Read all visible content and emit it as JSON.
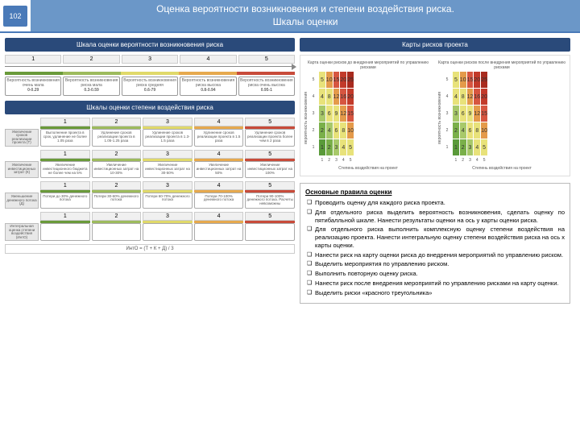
{
  "page_number": "102",
  "title_line1": "Оценка вероятности возникновения и степени воздействия риска.",
  "title_line2": "Шкалы оценки",
  "prob_scale": {
    "header": "Шкала оценки вероятности возникновения риска",
    "nums": [
      "1",
      "2",
      "3",
      "4",
      "5"
    ],
    "bar_colors": [
      "#6a9a3a",
      "#9dbb5d",
      "#e0d96a",
      "#e6a94e",
      "#c84b3a"
    ],
    "boxes": [
      {
        "t": "Вероятность возникновения очень мала",
        "v": "0-0.29"
      },
      {
        "t": "Вероятность возникновения риска мала",
        "v": "0.3-0.59"
      },
      {
        "t": "Вероятность возникновения риска средняя",
        "v": "0.6-79"
      },
      {
        "t": "Вероятность возникновения риска высока",
        "v": "0.8-0.94"
      },
      {
        "t": "Вероятность возникновения риска очень высока",
        "v": "0.95-1"
      }
    ]
  },
  "impact_scale": {
    "header": "Шкалы оценки степени воздействия риска",
    "bar_colors": [
      "#6a9a3a",
      "#9dbb5d",
      "#e0d96a",
      "#e6a94e",
      "#c84b3a"
    ],
    "groups": [
      {
        "label": "Увеличение сроков реализации проекта (Т)",
        "boxes": [
          "Выполнение проекта в срок, удлинение не более 1.05 раза",
          "Удлинение сроков реализации проекта в 1.05-1.25 раза",
          "Удлинение сроков реализации проекта в 1.3-1.5 раза",
          "Удлинение сроков реализации проекта в 1.5 раза",
          "Удлинение сроков реализации проекта более чем в 2 раза"
        ]
      },
      {
        "label": "Увеличение инвестиционных затрат (К)",
        "boxes": [
          "Увеличение инвестиционного бюджета не более чем на 5%",
          "Увеличение инвестиционных затрат на 10-30%",
          "Увеличение инвестиционных затрат на 30-50%",
          "Увеличение инвестиционных затрат на 50%",
          "Увеличение инвестиционных затрат на 100%"
        ]
      },
      {
        "label": "Уменьшение денежного потока (Д)",
        "boxes": [
          "Потери до 30% денежного потока",
          "Потери 30-60% денежного потока",
          "Потери 60-70% денежного потока",
          "Потери 70-100% денежного потока",
          "Потери 90-100% денежного потока. Расчеты невозможны"
        ]
      },
      {
        "label": "Интегральная оценка степени воздействия (ИнтО)",
        "boxes": [
          "",
          "",
          "",
          "",
          ""
        ]
      }
    ],
    "formula": "ИнтО = (Т + К + Д) / 3"
  },
  "maps": {
    "header": "Карты рисков проекта",
    "left_title": "Карта оценки рисков до внедрения мероприятий по управлению рисками",
    "right_title": "Карта оценки рисков после внедрения мероприятий по управлению рисками",
    "y_axis": "вероятность возникновения",
    "x_axis": "Степень воздействия на проект",
    "ylabs": [
      "5",
      "4",
      "3",
      "2",
      "1"
    ],
    "xlabs": [
      "1",
      "2",
      "3",
      "4",
      "5"
    ],
    "left_cells": [
      [
        {
          "v": 5,
          "c": "#e8e27a"
        },
        {
          "v": 10,
          "c": "#e49a4a"
        },
        {
          "v": 15,
          "c": "#d65540"
        },
        {
          "v": 20,
          "c": "#c23a2a"
        },
        {
          "v": 25,
          "c": "#a82a1e"
        }
      ],
      [
        {
          "v": 4,
          "c": "#e8e27a"
        },
        {
          "v": 8,
          "c": "#e8e27a"
        },
        {
          "v": 12,
          "c": "#e49a4a"
        },
        {
          "v": 16,
          "c": "#d65540"
        },
        {
          "v": 20,
          "c": "#c23a2a"
        }
      ],
      [
        {
          "v": 3,
          "c": "#a8c96a"
        },
        {
          "v": 6,
          "c": "#e8e27a"
        },
        {
          "v": 9,
          "c": "#e8e27a"
        },
        {
          "v": 12,
          "c": "#e49a4a"
        },
        {
          "v": 15,
          "c": "#d65540"
        }
      ],
      [
        {
          "v": 2,
          "c": "#7ab04a"
        },
        {
          "v": 4,
          "c": "#a8c96a"
        },
        {
          "v": 6,
          "c": "#e8e27a"
        },
        {
          "v": 8,
          "c": "#e8e27a"
        },
        {
          "v": 10,
          "c": "#e49a4a"
        }
      ],
      [
        {
          "v": 1,
          "c": "#5a9a3a"
        },
        {
          "v": 2,
          "c": "#7ab04a"
        },
        {
          "v": 3,
          "c": "#a8c96a"
        },
        {
          "v": 4,
          "c": "#e8e27a"
        },
        {
          "v": 5,
          "c": "#e8e27a"
        }
      ]
    ],
    "right_cells": [
      [
        {
          "v": 5,
          "c": "#e8e27a"
        },
        {
          "v": 10,
          "c": "#e49a4a"
        },
        {
          "v": 15,
          "c": "#d65540"
        },
        {
          "v": 20,
          "c": "#c23a2a"
        },
        {
          "v": 25,
          "c": "#a82a1e"
        }
      ],
      [
        {
          "v": 4,
          "c": "#e8e27a"
        },
        {
          "v": 8,
          "c": "#e8e27a"
        },
        {
          "v": 12,
          "c": "#e49a4a"
        },
        {
          "v": 16,
          "c": "#d65540"
        },
        {
          "v": 20,
          "c": "#c23a2a"
        }
      ],
      [
        {
          "v": 3,
          "c": "#a8c96a"
        },
        {
          "v": 6,
          "c": "#e8e27a"
        },
        {
          "v": 9,
          "c": "#e8e27a"
        },
        {
          "v": 12,
          "c": "#e49a4a"
        },
        {
          "v": 15,
          "c": "#d65540"
        }
      ],
      [
        {
          "v": 2,
          "c": "#7ab04a"
        },
        {
          "v": 4,
          "c": "#a8c96a"
        },
        {
          "v": 6,
          "c": "#e8e27a"
        },
        {
          "v": 8,
          "c": "#e8e27a"
        },
        {
          "v": 10,
          "c": "#e49a4a"
        }
      ],
      [
        {
          "v": 1,
          "c": "#5a9a3a"
        },
        {
          "v": 2,
          "c": "#7ab04a"
        },
        {
          "v": 3,
          "c": "#a8c96a"
        },
        {
          "v": 4,
          "c": "#e8e27a"
        },
        {
          "v": 5,
          "c": "#e8e27a"
        }
      ]
    ]
  },
  "rules": {
    "title": "Основные правила оценки",
    "items": [
      "Проводить оценку для каждого риска проекта.",
      "Для отдельного риска выделить вероятность возникновения, сделать оценку по пятибалльной шкале. Нанести результаты оценки на ось у карты оценки риска.",
      "Для отдельного риска выполнить комплексную оценку степени воздействия на реализацию проекта. Нанести интегральную оценку степени воздействия риска на ось х карты оценки.",
      "Нанести риск на карту оценки риска до внедрения мероприятий по управлению риском.",
      "Выделить мероприятия по управлению риском.",
      "Выполнить повторную оценку риска.",
      "Нанести риск после внедрения мероприятий по управлению рисками на карту оценки.",
      "Выделить риски «красного треугольника»"
    ]
  }
}
